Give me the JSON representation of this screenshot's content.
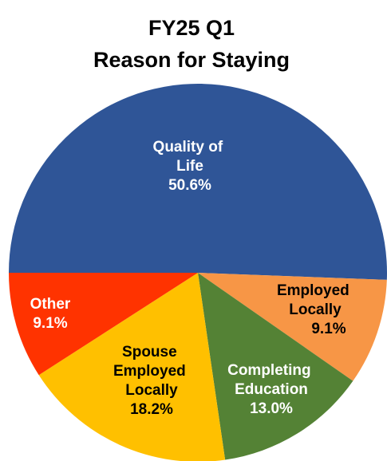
{
  "chart_data": {
    "type": "pie",
    "title": "FY25 Q1",
    "subtitle": "Reason for Staying",
    "categories": [
      "Quality of Life",
      "Employed Locally",
      "Completing Education",
      "Spouse Employed Locally",
      "Other"
    ],
    "values": [
      50.6,
      9.1,
      13.0,
      18.2,
      9.1
    ],
    "value_labels": [
      "50.6%",
      "9.1%",
      "13.0%",
      "18.2%",
      "9.1%"
    ],
    "colors": [
      "#2f5597",
      "#f79646",
      "#548235",
      "#ffc000",
      "#ff3300"
    ]
  }
}
